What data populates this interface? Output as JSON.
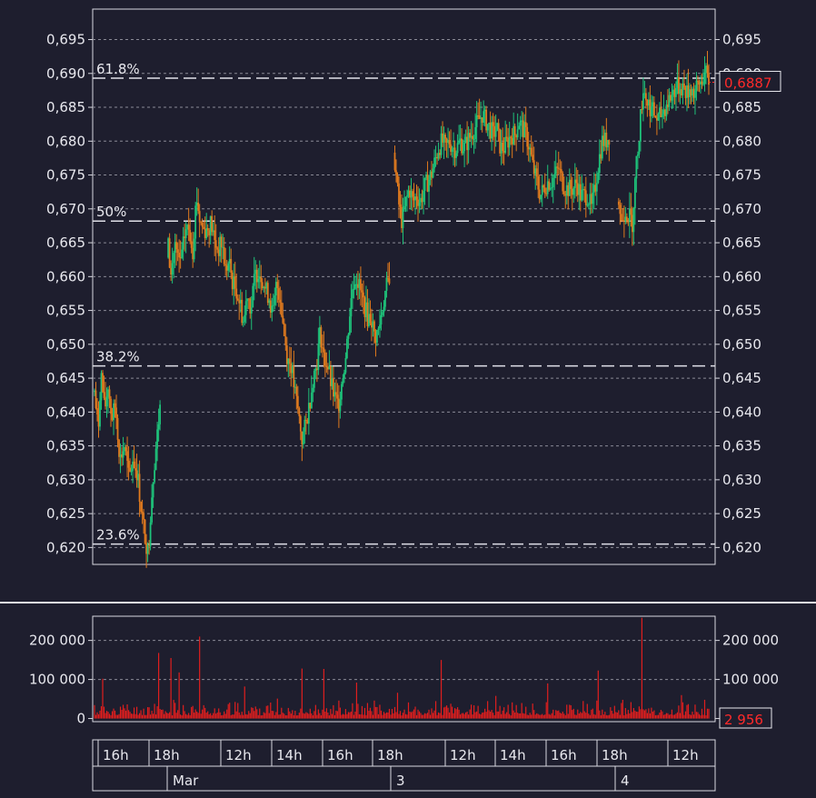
{
  "chart_data": [
    {
      "type": "candlestick",
      "y_ticks": [
        "0,695",
        "0,690",
        "0,685",
        "0,680",
        "0,675",
        "0,670",
        "0,665",
        "0,660",
        "0,655",
        "0,650",
        "0,645",
        "0,640",
        "0,635",
        "0,630",
        "0,625",
        "0,620"
      ],
      "y_tick_values": [
        0.695,
        0.69,
        0.685,
        0.68,
        0.675,
        0.67,
        0.665,
        0.66,
        0.655,
        0.65,
        0.645,
        0.64,
        0.635,
        0.63,
        0.625,
        0.62
      ],
      "ylim": [
        0.6175,
        0.6995
      ],
      "grid": true,
      "last_price": 0.6887,
      "last_price_label": "0,6887",
      "fibonacci": [
        {
          "label": "61.8%",
          "value": 0.6893
        },
        {
          "label": "50%",
          "value": 0.6682
        },
        {
          "label": "38.2%",
          "value": 0.6468
        },
        {
          "label": "23.6%",
          "value": 0.6205
        }
      ],
      "series_points": [
        [
          0,
          0.643
        ],
        [
          4,
          0.637
        ],
        [
          7,
          0.646
        ],
        [
          11,
          0.64
        ],
        [
          15,
          0.644
        ],
        [
          19,
          0.639
        ],
        [
          23,
          0.641
        ],
        [
          28,
          0.633
        ],
        [
          33,
          0.635
        ],
        [
          38,
          0.63
        ],
        [
          42,
          0.633
        ],
        [
          47,
          0.631
        ],
        [
          51,
          0.626
        ],
        [
          55,
          0.622
        ],
        [
          59,
          0.619
        ],
        [
          61,
          0.624
        ],
        [
          64,
          0.63
        ],
        [
          67,
          0.634
        ],
        [
          70,
          0.638
        ],
        [
          73,
          0.642
        ],
        [
          80,
          0.666
        ],
        [
          84,
          0.66
        ],
        [
          88,
          0.665
        ],
        [
          92,
          0.662
        ],
        [
          96,
          0.663
        ],
        [
          100,
          0.667
        ],
        [
          104,
          0.667
        ],
        [
          108,
          0.664
        ],
        [
          112,
          0.672
        ],
        [
          116,
          0.668
        ],
        [
          120,
          0.667
        ],
        [
          124,
          0.667
        ],
        [
          128,
          0.668
        ],
        [
          132,
          0.665
        ],
        [
          136,
          0.664
        ],
        [
          140,
          0.665
        ],
        [
          144,
          0.661
        ],
        [
          148,
          0.662
        ],
        [
          152,
          0.659
        ],
        [
          156,
          0.658
        ],
        [
          160,
          0.656
        ],
        [
          164,
          0.653
        ],
        [
          168,
          0.658
        ],
        [
          172,
          0.655
        ],
        [
          176,
          0.66
        ],
        [
          180,
          0.661
        ],
        [
          184,
          0.66
        ],
        [
          188,
          0.658
        ],
        [
          192,
          0.657
        ],
        [
          196,
          0.654
        ],
        [
          200,
          0.659
        ],
        [
          204,
          0.657
        ],
        [
          208,
          0.652
        ],
        [
          212,
          0.648
        ],
        [
          216,
          0.647
        ],
        [
          220,
          0.643
        ],
        [
          224,
          0.64
        ],
        [
          228,
          0.636
        ],
        [
          232,
          0.638
        ],
        [
          236,
          0.641
        ],
        [
          240,
          0.645
        ],
        [
          244,
          0.647
        ],
        [
          248,
          0.652
        ],
        [
          252,
          0.648
        ],
        [
          256,
          0.647
        ],
        [
          260,
          0.644
        ],
        [
          264,
          0.642
        ],
        [
          268,
          0.641
        ],
        [
          272,
          0.645
        ],
        [
          276,
          0.648
        ],
        [
          280,
          0.654
        ],
        [
          284,
          0.659
        ],
        [
          288,
          0.66
        ],
        [
          292,
          0.658
        ],
        [
          296,
          0.656
        ],
        [
          300,
          0.654
        ],
        [
          304,
          0.654
        ],
        [
          308,
          0.651
        ],
        [
          312,
          0.652
        ],
        [
          316,
          0.655
        ],
        [
          320,
          0.658
        ],
        [
          324,
          0.66
        ],
        [
          330,
          0.677
        ],
        [
          334,
          0.671
        ],
        [
          338,
          0.668
        ],
        [
          342,
          0.671
        ],
        [
          346,
          0.673
        ],
        [
          350,
          0.671
        ],
        [
          354,
          0.672
        ],
        [
          358,
          0.671
        ],
        [
          362,
          0.673
        ],
        [
          366,
          0.674
        ],
        [
          370,
          0.675
        ],
        [
          374,
          0.677
        ],
        [
          378,
          0.679
        ],
        [
          382,
          0.68
        ],
        [
          386,
          0.679
        ],
        [
          390,
          0.68
        ],
        [
          394,
          0.679
        ],
        [
          398,
          0.679
        ],
        [
          402,
          0.68
        ],
        [
          406,
          0.679
        ],
        [
          410,
          0.68
        ],
        [
          414,
          0.681
        ],
        [
          418,
          0.682
        ],
        [
          422,
          0.683
        ],
        [
          426,
          0.684
        ],
        [
          430,
          0.683
        ],
        [
          434,
          0.682
        ],
        [
          438,
          0.681
        ],
        [
          442,
          0.682
        ],
        [
          446,
          0.679
        ],
        [
          450,
          0.679
        ],
        [
          454,
          0.68
        ],
        [
          458,
          0.681
        ],
        [
          462,
          0.681
        ],
        [
          466,
          0.683
        ],
        [
          470,
          0.682
        ],
        [
          474,
          0.681
        ],
        [
          478,
          0.679
        ],
        [
          482,
          0.676
        ],
        [
          486,
          0.674
        ],
        [
          490,
          0.672
        ],
        [
          494,
          0.673
        ],
        [
          498,
          0.674
        ],
        [
          502,
          0.674
        ],
        [
          506,
          0.675
        ],
        [
          510,
          0.676
        ],
        [
          514,
          0.674
        ],
        [
          518,
          0.673
        ],
        [
          522,
          0.673
        ],
        [
          526,
          0.673
        ],
        [
          530,
          0.674
        ],
        [
          534,
          0.672
        ],
        [
          538,
          0.672
        ],
        [
          542,
          0.672
        ],
        [
          546,
          0.67
        ],
        [
          550,
          0.673
        ],
        [
          554,
          0.677
        ],
        [
          558,
          0.68
        ],
        [
          562,
          0.68
        ],
        [
          566,
          0.681
        ],
        [
          575,
          0.672
        ],
        [
          579,
          0.668
        ],
        [
          583,
          0.67
        ],
        [
          587,
          0.669
        ],
        [
          591,
          0.668
        ],
        [
          595,
          0.676
        ],
        [
          599,
          0.682
        ],
        [
          603,
          0.688
        ],
        [
          607,
          0.686
        ],
        [
          611,
          0.685
        ],
        [
          615,
          0.684
        ],
        [
          619,
          0.683
        ],
        [
          623,
          0.684
        ],
        [
          627,
          0.685
        ],
        [
          631,
          0.686
        ],
        [
          635,
          0.687
        ],
        [
          639,
          0.688
        ],
        [
          643,
          0.688
        ],
        [
          647,
          0.688
        ],
        [
          651,
          0.687
        ],
        [
          655,
          0.688
        ],
        [
          659,
          0.687
        ],
        [
          663,
          0.688
        ],
        [
          667,
          0.689
        ],
        [
          671,
          0.69
        ],
        [
          675,
          0.6887
        ]
      ]
    },
    {
      "type": "bar",
      "y_ticks": [
        "200 000",
        "100 000",
        "0"
      ],
      "y_tick_values": [
        200000,
        100000,
        0
      ],
      "ylim": [
        -8000,
        262000
      ],
      "grid": true,
      "last_volume_label": "2 956",
      "notable_volumes": [
        {
          "x": 9,
          "v": 102000
        },
        {
          "x": 70,
          "v": 168000
        },
        {
          "x": 84,
          "v": 155000
        },
        {
          "x": 93,
          "v": 118000
        },
        {
          "x": 115,
          "v": 210000
        },
        {
          "x": 165,
          "v": 82000
        },
        {
          "x": 228,
          "v": 128000
        },
        {
          "x": 252,
          "v": 127000
        },
        {
          "x": 288,
          "v": 92000
        },
        {
          "x": 333,
          "v": 66000
        },
        {
          "x": 381,
          "v": 150000
        },
        {
          "x": 441,
          "v": 58000
        },
        {
          "x": 498,
          "v": 90000
        },
        {
          "x": 553,
          "v": 123000
        },
        {
          "x": 601,
          "v": 258000
        },
        {
          "x": 645,
          "v": 60000
        },
        {
          "x": 671,
          "v": 48000
        }
      ]
    }
  ],
  "time_axis": {
    "hour_labels": [
      "16h",
      "18h",
      "12h",
      "14h",
      "16h",
      "18h",
      "12h",
      "14h",
      "16h",
      "18h",
      "12h"
    ],
    "date_labels": [
      "Mar",
      "3",
      "4"
    ]
  },
  "colors": {
    "background": "#1e1e2e",
    "frame": "#d8d8e0",
    "text": "#e8e8ee",
    "grid": "#8a8a96",
    "fib_line": "#e0e0e8",
    "up_candle": "#1ec27a",
    "down_candle": "#e07a1e",
    "volume": "#e01e1e",
    "price_label": "#ff2a2a"
  }
}
